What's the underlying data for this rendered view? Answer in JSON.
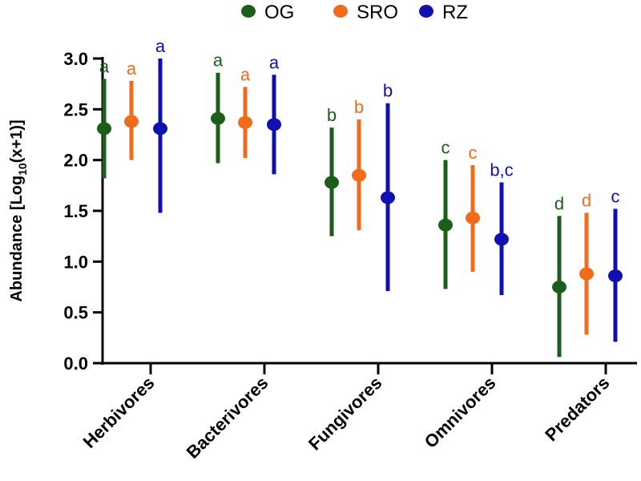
{
  "chart_data": {
    "type": "scatter",
    "subtype": "point-with-range",
    "title": "",
    "xlabel": "",
    "ylabel": "Abundance  [Log10(x+1)]",
    "ylabel_parts": {
      "pre": "Abundance  [Log",
      "sub": "10",
      "post": "(x+1)]"
    },
    "ylim": [
      0,
      3.0
    ],
    "yticks": [
      0.0,
      0.5,
      1.0,
      1.5,
      2.0,
      2.5,
      3.0
    ],
    "ytick_labels": [
      "0.0",
      "0.5",
      "1.0",
      "1.5",
      "2.0",
      "2.5",
      "3.0"
    ],
    "grid": false,
    "legend_position": "top-center",
    "categories": [
      "Herbivores",
      "Bacterivores",
      "Fungivores",
      "Omnivores",
      "Predators"
    ],
    "series": [
      {
        "name": "OG",
        "color": "#1a5e1a",
        "values": [
          2.31,
          2.41,
          1.78,
          1.36,
          0.75
        ],
        "lower": [
          1.82,
          1.97,
          1.25,
          0.73,
          0.06
        ],
        "upper": [
          2.8,
          2.86,
          2.32,
          2.0,
          1.45
        ],
        "letters": [
          "a",
          "a",
          "b",
          "c",
          "d"
        ]
      },
      {
        "name": "SRO",
        "color": "#f26b1d",
        "values": [
          2.38,
          2.37,
          1.85,
          1.43,
          0.88
        ],
        "lower": [
          2.0,
          2.02,
          1.31,
          0.9,
          0.28
        ],
        "upper": [
          2.78,
          2.72,
          2.4,
          1.95,
          1.48
        ],
        "letters": [
          "a",
          "a",
          "b",
          "c",
          "d"
        ]
      },
      {
        "name": "RZ",
        "color": "#1010b0",
        "values": [
          2.31,
          2.35,
          1.63,
          1.22,
          0.86
        ],
        "lower": [
          1.48,
          1.86,
          0.71,
          0.67,
          0.21
        ],
        "upper": [
          3.0,
          2.84,
          2.56,
          1.78,
          1.52
        ],
        "letters": [
          "a",
          "a",
          "b",
          "b,c",
          "c"
        ]
      }
    ]
  }
}
